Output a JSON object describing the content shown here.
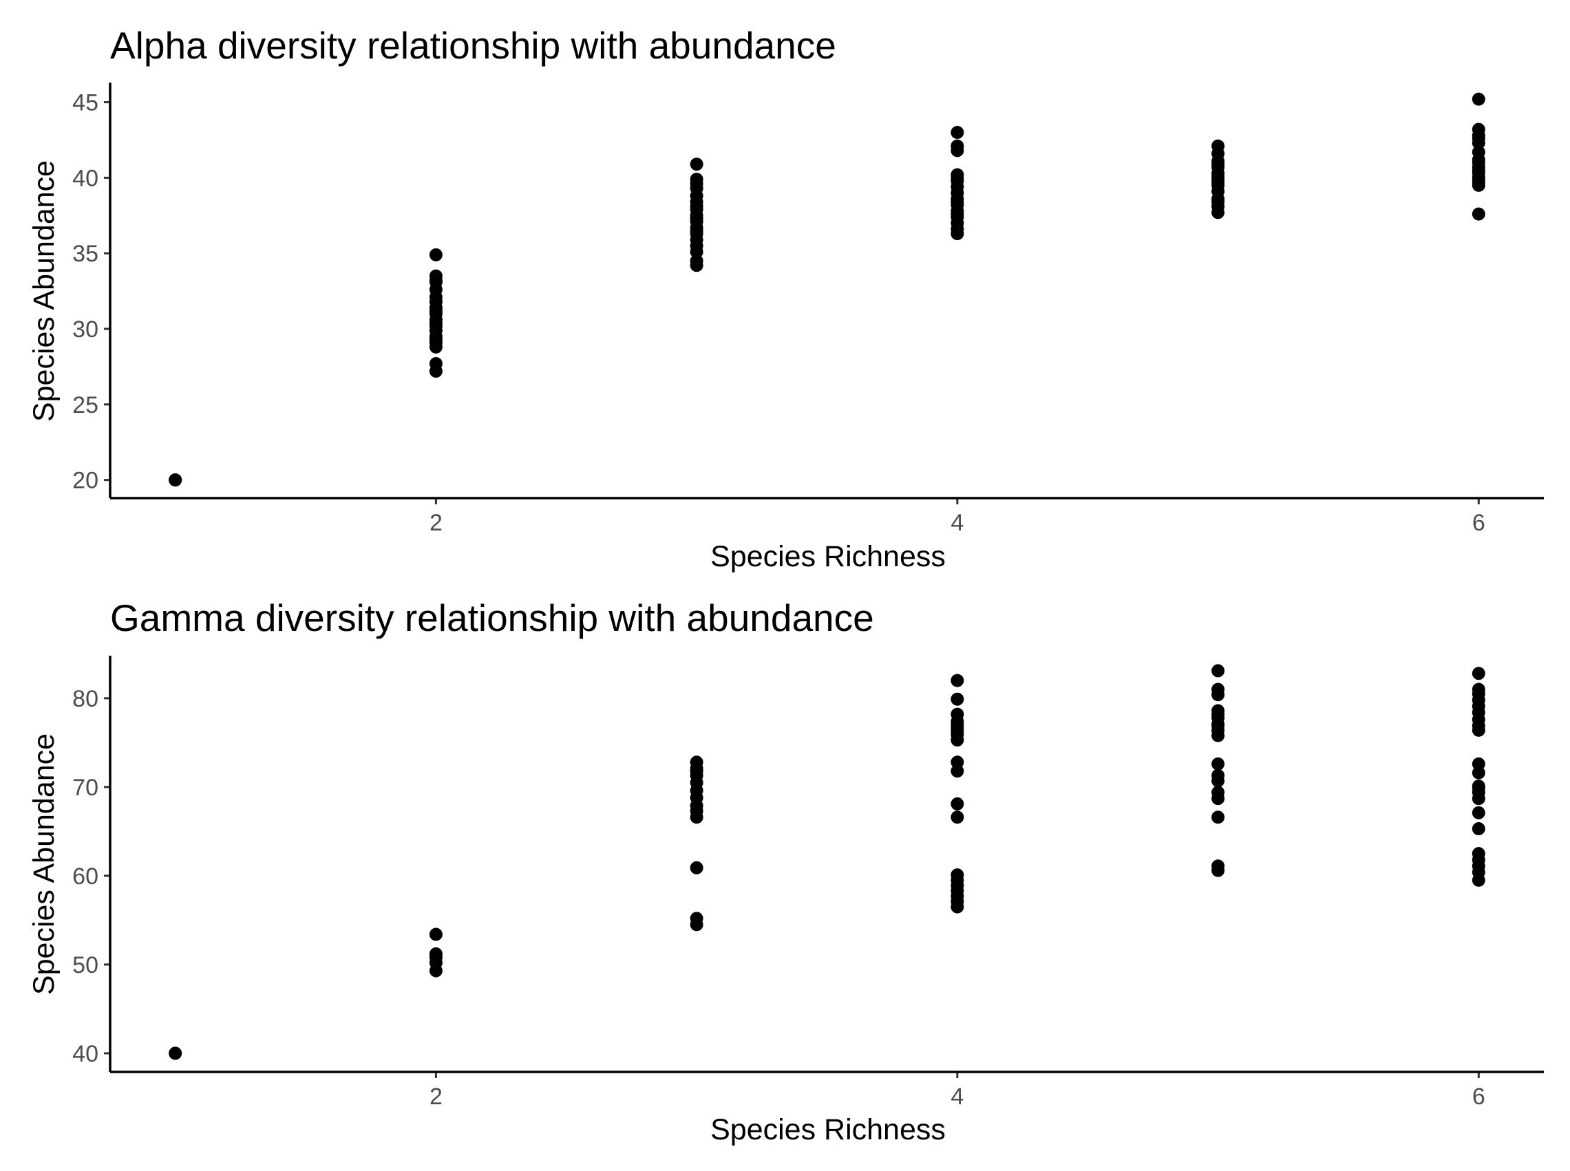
{
  "chart_data": [
    {
      "type": "scatter",
      "title": "Alpha diversity relationship with abundance",
      "xlabel": "Species Richness",
      "ylabel": "Species Abundance",
      "xlim": [
        0.75,
        6.25
      ],
      "ylim": [
        18.8,
        46.3
      ],
      "xticks": [
        2,
        4,
        6
      ],
      "yticks": [
        20,
        25,
        30,
        35,
        40,
        45
      ],
      "grid": false,
      "legend": "none",
      "point_color": "#000000",
      "series": [
        {
          "x": [
            1,
            1,
            1,
            2,
            2,
            2,
            2,
            2,
            2,
            2,
            2,
            2,
            2,
            2,
            2,
            2,
            2,
            2,
            2,
            2,
            2,
            2,
            2,
            3,
            3,
            3,
            3,
            3,
            3,
            3,
            3,
            3,
            3,
            3,
            3,
            3,
            3,
            3,
            3,
            3,
            3,
            3,
            4,
            4,
            4,
            4,
            4,
            4,
            4,
            4,
            4,
            4,
            4,
            4,
            4,
            4,
            4,
            4,
            4,
            5,
            5,
            5,
            5,
            5,
            5,
            5,
            5,
            5,
            5,
            5,
            5,
            5,
            5,
            5,
            6,
            6,
            6,
            6,
            6,
            6,
            6,
            6,
            6,
            6,
            6,
            6,
            6,
            6,
            6,
            6
          ],
          "y": [
            20,
            20,
            20,
            34.9,
            33.5,
            33.1,
            32.6,
            32.1,
            31.8,
            31.4,
            31.0,
            30.6,
            30.2,
            29.9,
            29.5,
            29.1,
            28.8,
            27.7,
            27.2,
            33.2,
            31.2,
            30.4,
            29.3,
            40.9,
            39.9,
            39.3,
            38.8,
            38.4,
            37.9,
            37.5,
            37.1,
            36.7,
            36.3,
            35.9,
            35.1,
            34.5,
            34.2,
            39.6,
            38.1,
            37.3,
            36.5,
            35.5,
            43.0,
            42.1,
            41.8,
            40.2,
            39.8,
            39.4,
            39.0,
            38.6,
            38.2,
            37.8,
            37.4,
            37.0,
            36.6,
            36.3,
            40.0,
            38.4,
            37.6,
            42.1,
            41.6,
            41.1,
            40.7,
            40.3,
            39.9,
            39.5,
            39.1,
            38.6,
            38.1,
            37.7,
            40.9,
            40.1,
            39.7,
            38.4,
            45.2,
            43.2,
            42.8,
            42.3,
            41.7,
            41.2,
            40.7,
            40.3,
            39.9,
            39.5,
            37.6,
            42.6,
            41.0,
            40.5,
            40.0,
            39.7
          ]
        }
      ]
    },
    {
      "type": "scatter",
      "title": "Gamma diversity relationship with abundance",
      "xlabel": "Species Richness",
      "ylabel": "Species Abundance",
      "xlim": [
        0.75,
        6.25
      ],
      "ylim": [
        37.9,
        84.8
      ],
      "xticks": [
        2,
        4,
        6
      ],
      "yticks": [
        40,
        50,
        60,
        70,
        80
      ],
      "grid": false,
      "legend": "none",
      "point_color": "#000000",
      "series": [
        {
          "x": [
            1,
            1,
            2,
            2,
            2,
            2,
            2,
            3,
            3,
            3,
            3,
            3,
            3,
            3,
            3,
            3,
            3,
            3,
            3,
            3,
            4,
            4,
            4,
            4,
            4,
            4,
            4,
            4,
            4,
            4,
            4,
            4,
            4,
            4,
            4,
            4,
            4,
            4,
            4,
            4,
            5,
            5,
            5,
            5,
            5,
            5,
            5,
            5,
            5,
            5,
            5,
            5,
            5,
            5,
            5,
            5,
            5,
            5,
            6,
            6,
            6,
            6,
            6,
            6,
            6,
            6,
            6,
            6,
            6,
            6,
            6,
            6,
            6,
            6,
            6,
            6,
            6,
            6,
            6,
            6
          ],
          "y": [
            40,
            40,
            53.4,
            51.2,
            50.8,
            49.3,
            50.2,
            72.8,
            72.1,
            71.3,
            70.5,
            69.6,
            68.8,
            67.9,
            67.3,
            66.6,
            60.9,
            55.2,
            54.5,
            71.8,
            82.0,
            79.9,
            78.2,
            77.4,
            76.6,
            75.9,
            75.3,
            72.8,
            71.8,
            68.1,
            66.6,
            60.1,
            59.5,
            58.9,
            58.3,
            57.7,
            57.1,
            56.5,
            77.0,
            76.2,
            83.1,
            81.0,
            80.4,
            78.6,
            77.8,
            77.1,
            76.4,
            75.8,
            72.6,
            71.3,
            70.7,
            69.4,
            68.7,
            66.6,
            61.1,
            60.6,
            78.2,
            76.9,
            82.8,
            81.0,
            80.5,
            79.8,
            79.1,
            77.6,
            76.9,
            76.4,
            72.6,
            71.6,
            70.1,
            69.4,
            68.7,
            67.1,
            65.3,
            62.5,
            61.8,
            61.1,
            60.4,
            59.5,
            78.4,
            69.9
          ]
        }
      ]
    }
  ]
}
